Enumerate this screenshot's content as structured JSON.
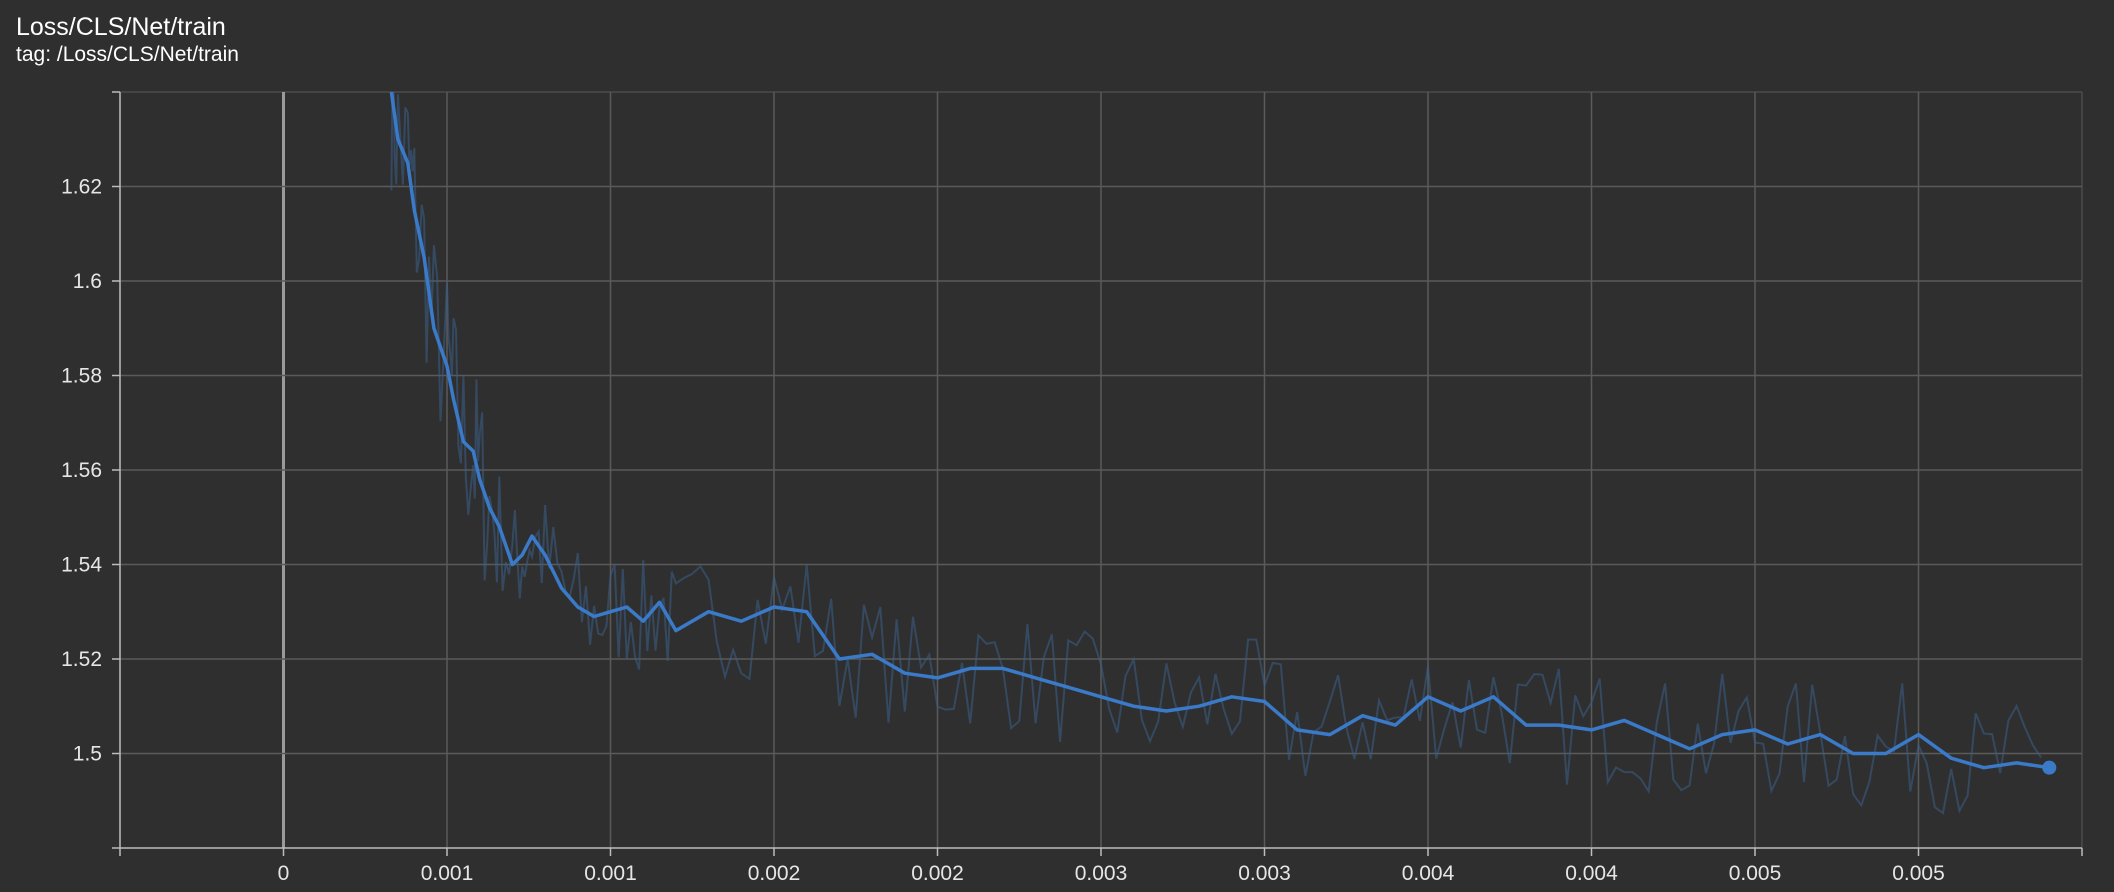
{
  "header": {
    "title": "Loss/CLS/Net/train",
    "subtitle": "tag: /Loss/CLS/Net/train"
  },
  "colors": {
    "background": "#2f2f2f",
    "grid": "#5a5a5a",
    "axis": "#bdbdbd",
    "series": "#3a7ac8",
    "series_raw": "#3a5f88"
  },
  "chart_data": {
    "type": "line",
    "title": "Loss/CLS/Net/train",
    "xlabel": "",
    "ylabel": "",
    "xlim": [
      -0.0005,
      0.0055
    ],
    "ylim": [
      1.48,
      1.64
    ],
    "grid": true,
    "x_ticks": [
      0,
      0.0005,
      0.001,
      0.0015,
      0.002,
      0.0025,
      0.003,
      0.0035,
      0.004,
      0.0045,
      0.005
    ],
    "x_tick_labels": [
      "0",
      "0.001",
      "0.001",
      "0.002",
      "0.002",
      "0.003",
      "0.003",
      "0.004",
      "0.004",
      "0.005",
      "0.005"
    ],
    "y_ticks": [
      1.5,
      1.52,
      1.54,
      1.56,
      1.58,
      1.6,
      1.62
    ],
    "y_tick_labels": [
      "1.5",
      "1.52",
      "1.54",
      "1.56",
      "1.58",
      "1.6",
      "1.62"
    ],
    "series": [
      {
        "style": "smoothed",
        "x": [
          0.00033,
          0.00035,
          0.00038,
          0.0004,
          0.00043,
          0.00046,
          0.0005,
          0.00052,
          0.00055,
          0.00058,
          0.0006,
          0.00063,
          0.00066,
          0.0007,
          0.00073,
          0.00076,
          0.0008,
          0.00085,
          0.0009,
          0.00095,
          0.001,
          0.00105,
          0.0011,
          0.00115,
          0.0012,
          0.0013,
          0.0014,
          0.0015,
          0.0016,
          0.0017,
          0.0018,
          0.0019,
          0.002,
          0.0021,
          0.0022,
          0.0023,
          0.0024,
          0.0025,
          0.0026,
          0.0027,
          0.0028,
          0.0029,
          0.003,
          0.0031,
          0.0032,
          0.0033,
          0.0034,
          0.0035,
          0.0036,
          0.0037,
          0.0038,
          0.0039,
          0.004,
          0.0041,
          0.0042,
          0.0043,
          0.0044,
          0.0045,
          0.0046,
          0.0047,
          0.0048,
          0.0049,
          0.005,
          0.0051,
          0.0052,
          0.0053,
          0.0054
        ],
        "y": [
          1.64,
          1.63,
          1.625,
          1.615,
          1.605,
          1.59,
          1.582,
          1.575,
          1.566,
          1.564,
          1.558,
          1.552,
          1.548,
          1.54,
          1.542,
          1.546,
          1.542,
          1.535,
          1.531,
          1.529,
          1.53,
          1.531,
          1.528,
          1.532,
          1.526,
          1.53,
          1.528,
          1.531,
          1.53,
          1.52,
          1.521,
          1.517,
          1.516,
          1.518,
          1.518,
          1.516,
          1.514,
          1.512,
          1.51,
          1.509,
          1.51,
          1.512,
          1.511,
          1.505,
          1.504,
          1.508,
          1.506,
          1.512,
          1.509,
          1.512,
          1.506,
          1.506,
          1.505,
          1.507,
          1.504,
          1.501,
          1.504,
          1.505,
          1.502,
          1.504,
          1.5,
          1.5,
          1.504,
          1.499,
          1.497,
          1.498,
          1.497
        ]
      }
    ],
    "raw_series": {
      "style": "raw",
      "seed": 7,
      "noise_amplitude": 0.013,
      "points_per_step": 4
    }
  }
}
